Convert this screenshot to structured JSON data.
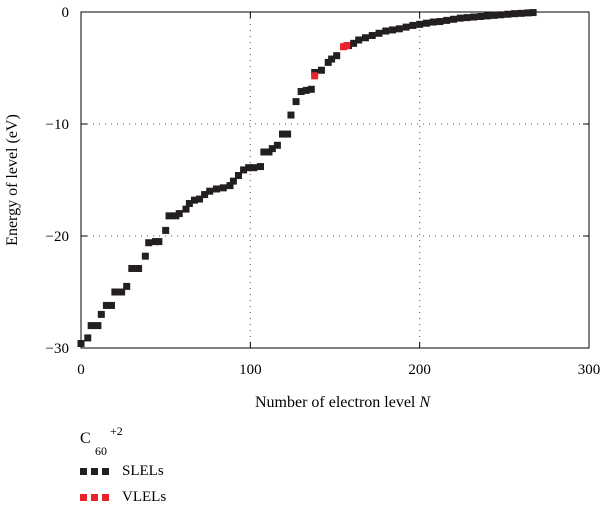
{
  "colors": {
    "slel": "#231f20",
    "vlel": "#e8232a",
    "grid": "#555555"
  },
  "chart_data": {
    "type": "scatter",
    "xlabel": "Number of electron level ",
    "xlabel_italic": "N",
    "ylabel": "Energy of level (eV)",
    "xlim": [
      0,
      300
    ],
    "ylim": [
      -30,
      0
    ],
    "xticks": [
      "0",
      "100",
      "200",
      "300"
    ],
    "yticks": [
      "0",
      "−10",
      "−20",
      "−30"
    ],
    "grid": "dotted",
    "legend_placement": "below",
    "legend_title": {
      "base": "C",
      "sub": "60",
      "sup": "+2"
    },
    "series": [
      {
        "name": "SLELs",
        "marker": "square",
        "points": [
          [
            0,
            -29.6
          ],
          [
            4,
            -29.1
          ],
          [
            6,
            -28.0
          ],
          [
            10,
            -28.0
          ],
          [
            12,
            -27.0
          ],
          [
            15,
            -26.2
          ],
          [
            18,
            -26.2
          ],
          [
            20,
            -25.0
          ],
          [
            24,
            -25.0
          ],
          [
            27,
            -24.5
          ],
          [
            30,
            -22.9
          ],
          [
            34,
            -22.9
          ],
          [
            38,
            -21.8
          ],
          [
            40,
            -20.6
          ],
          [
            44,
            -20.5
          ],
          [
            46,
            -20.5
          ],
          [
            50,
            -19.5
          ],
          [
            52,
            -18.2
          ],
          [
            56,
            -18.2
          ],
          [
            58,
            -18.0
          ],
          [
            62,
            -17.6
          ],
          [
            64,
            -17.1
          ],
          [
            67,
            -16.8
          ],
          [
            70,
            -16.7
          ],
          [
            73,
            -16.3
          ],
          [
            76,
            -16.0
          ],
          [
            80,
            -15.8
          ],
          [
            84,
            -15.7
          ],
          [
            88,
            -15.5
          ],
          [
            90,
            -15.1
          ],
          [
            93,
            -14.6
          ],
          [
            96,
            -14.1
          ],
          [
            99,
            -13.9
          ],
          [
            102,
            -13.9
          ],
          [
            106,
            -13.8
          ],
          [
            108,
            -12.5
          ],
          [
            111,
            -12.5
          ],
          [
            113,
            -12.2
          ],
          [
            116,
            -11.9
          ],
          [
            119,
            -10.9
          ],
          [
            122,
            -10.9
          ],
          [
            124,
            -9.2
          ],
          [
            127,
            -8.0
          ],
          [
            130,
            -7.1
          ],
          [
            133,
            -7.0
          ],
          [
            136,
            -6.9
          ],
          [
            138,
            -5.4
          ],
          [
            142,
            -5.2
          ],
          [
            146,
            -4.5
          ],
          [
            148,
            -4.2
          ],
          [
            151,
            -3.9
          ],
          [
            158,
            -3.0
          ],
          [
            161,
            -2.8
          ],
          [
            164,
            -2.5
          ],
          [
            168,
            -2.3
          ],
          [
            172,
            -2.1
          ],
          [
            176,
            -1.9
          ],
          [
            180,
            -1.7
          ],
          [
            184,
            -1.6
          ],
          [
            188,
            -1.5
          ],
          [
            192,
            -1.35
          ],
          [
            196,
            -1.2
          ],
          [
            200,
            -1.1
          ],
          [
            204,
            -1.0
          ],
          [
            208,
            -0.9
          ],
          [
            212,
            -0.85
          ],
          [
            216,
            -0.75
          ],
          [
            220,
            -0.65
          ],
          [
            224,
            -0.55
          ],
          [
            228,
            -0.5
          ],
          [
            232,
            -0.45
          ],
          [
            236,
            -0.4
          ],
          [
            240,
            -0.35
          ],
          [
            244,
            -0.3
          ],
          [
            248,
            -0.25
          ],
          [
            252,
            -0.2
          ],
          [
            256,
            -0.15
          ],
          [
            260,
            -0.12
          ],
          [
            264,
            -0.08
          ],
          [
            267,
            -0.05
          ]
        ]
      },
      {
        "name": "VLELs",
        "marker": "square",
        "points": [
          [
            138,
            -5.7
          ],
          [
            155,
            -3.1
          ],
          [
            157,
            -3.0
          ]
        ]
      }
    ]
  }
}
